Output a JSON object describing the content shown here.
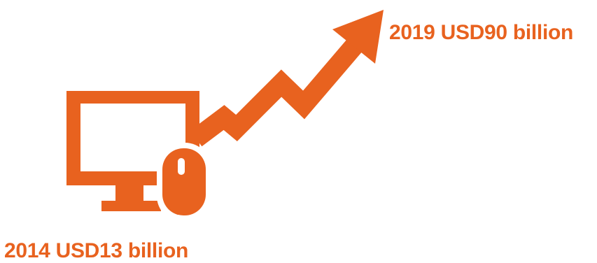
{
  "accent_color": "#E8621F",
  "labels": {
    "start": "2014 USD13 billion",
    "end": "2019 USD90 billion"
  },
  "icons": {
    "monitor": "desktop-monitor-icon",
    "mouse": "computer-mouse-icon",
    "arrow": "rising-trend-arrow-icon"
  }
}
